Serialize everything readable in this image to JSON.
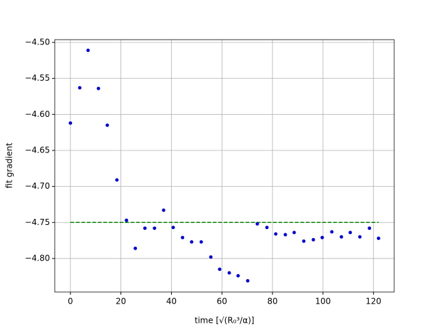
{
  "chart_data": {
    "type": "scatter",
    "xlabel": "time [√(R₀³/α)]",
    "ylabel": "fit gradient",
    "series": [
      {
        "color": "#0000c8",
        "x": [
          0,
          3.7,
          7.0,
          11.1,
          14.6,
          18.4,
          22.2,
          25.7,
          29.5,
          33.3,
          36.9,
          40.7,
          44.4,
          48.0,
          51.8,
          55.6,
          59.1,
          62.9,
          66.4,
          70.2,
          74.0,
          77.8,
          81.3,
          85.1,
          88.6,
          92.4,
          96.2,
          99.7,
          103.5,
          107.3,
          110.8,
          114.6,
          118.4,
          122.0
        ],
        "values": [
          -4.612,
          -4.563,
          -4.511,
          -4.564,
          -4.615,
          -4.691,
          -4.747,
          -4.786,
          -4.758,
          -4.758,
          -4.733,
          -4.757,
          -4.771,
          -4.777,
          -4.777,
          -4.798,
          -4.815,
          -4.82,
          -4.824,
          -4.831,
          -4.752,
          -4.757,
          -4.766,
          -4.767,
          -4.764,
          -4.776,
          -4.774,
          -4.771,
          -4.763,
          -4.77,
          -4.764,
          -4.77,
          -4.758,
          -4.772
        ]
      }
    ],
    "reference_line": {
      "y": -4.75,
      "x": [
        0,
        122
      ],
      "color": "#008000"
    },
    "xlim": [
      -6.2,
      128.2
    ],
    "ylim": [
      -4.8466,
      -4.4962
    ],
    "xticks": [
      0,
      20,
      40,
      60,
      80,
      100,
      120
    ],
    "yticks": [
      {
        "value": -4.5,
        "label": "−4.50"
      },
      {
        "value": -4.55,
        "label": "−4.55"
      },
      {
        "value": -4.6,
        "label": "−4.60"
      },
      {
        "value": -4.65,
        "label": "−4.65"
      },
      {
        "value": -4.7,
        "label": "−4.70"
      },
      {
        "value": -4.75,
        "label": "−4.75"
      },
      {
        "value": -4.8,
        "label": "−4.80"
      }
    ],
    "grid": true
  }
}
